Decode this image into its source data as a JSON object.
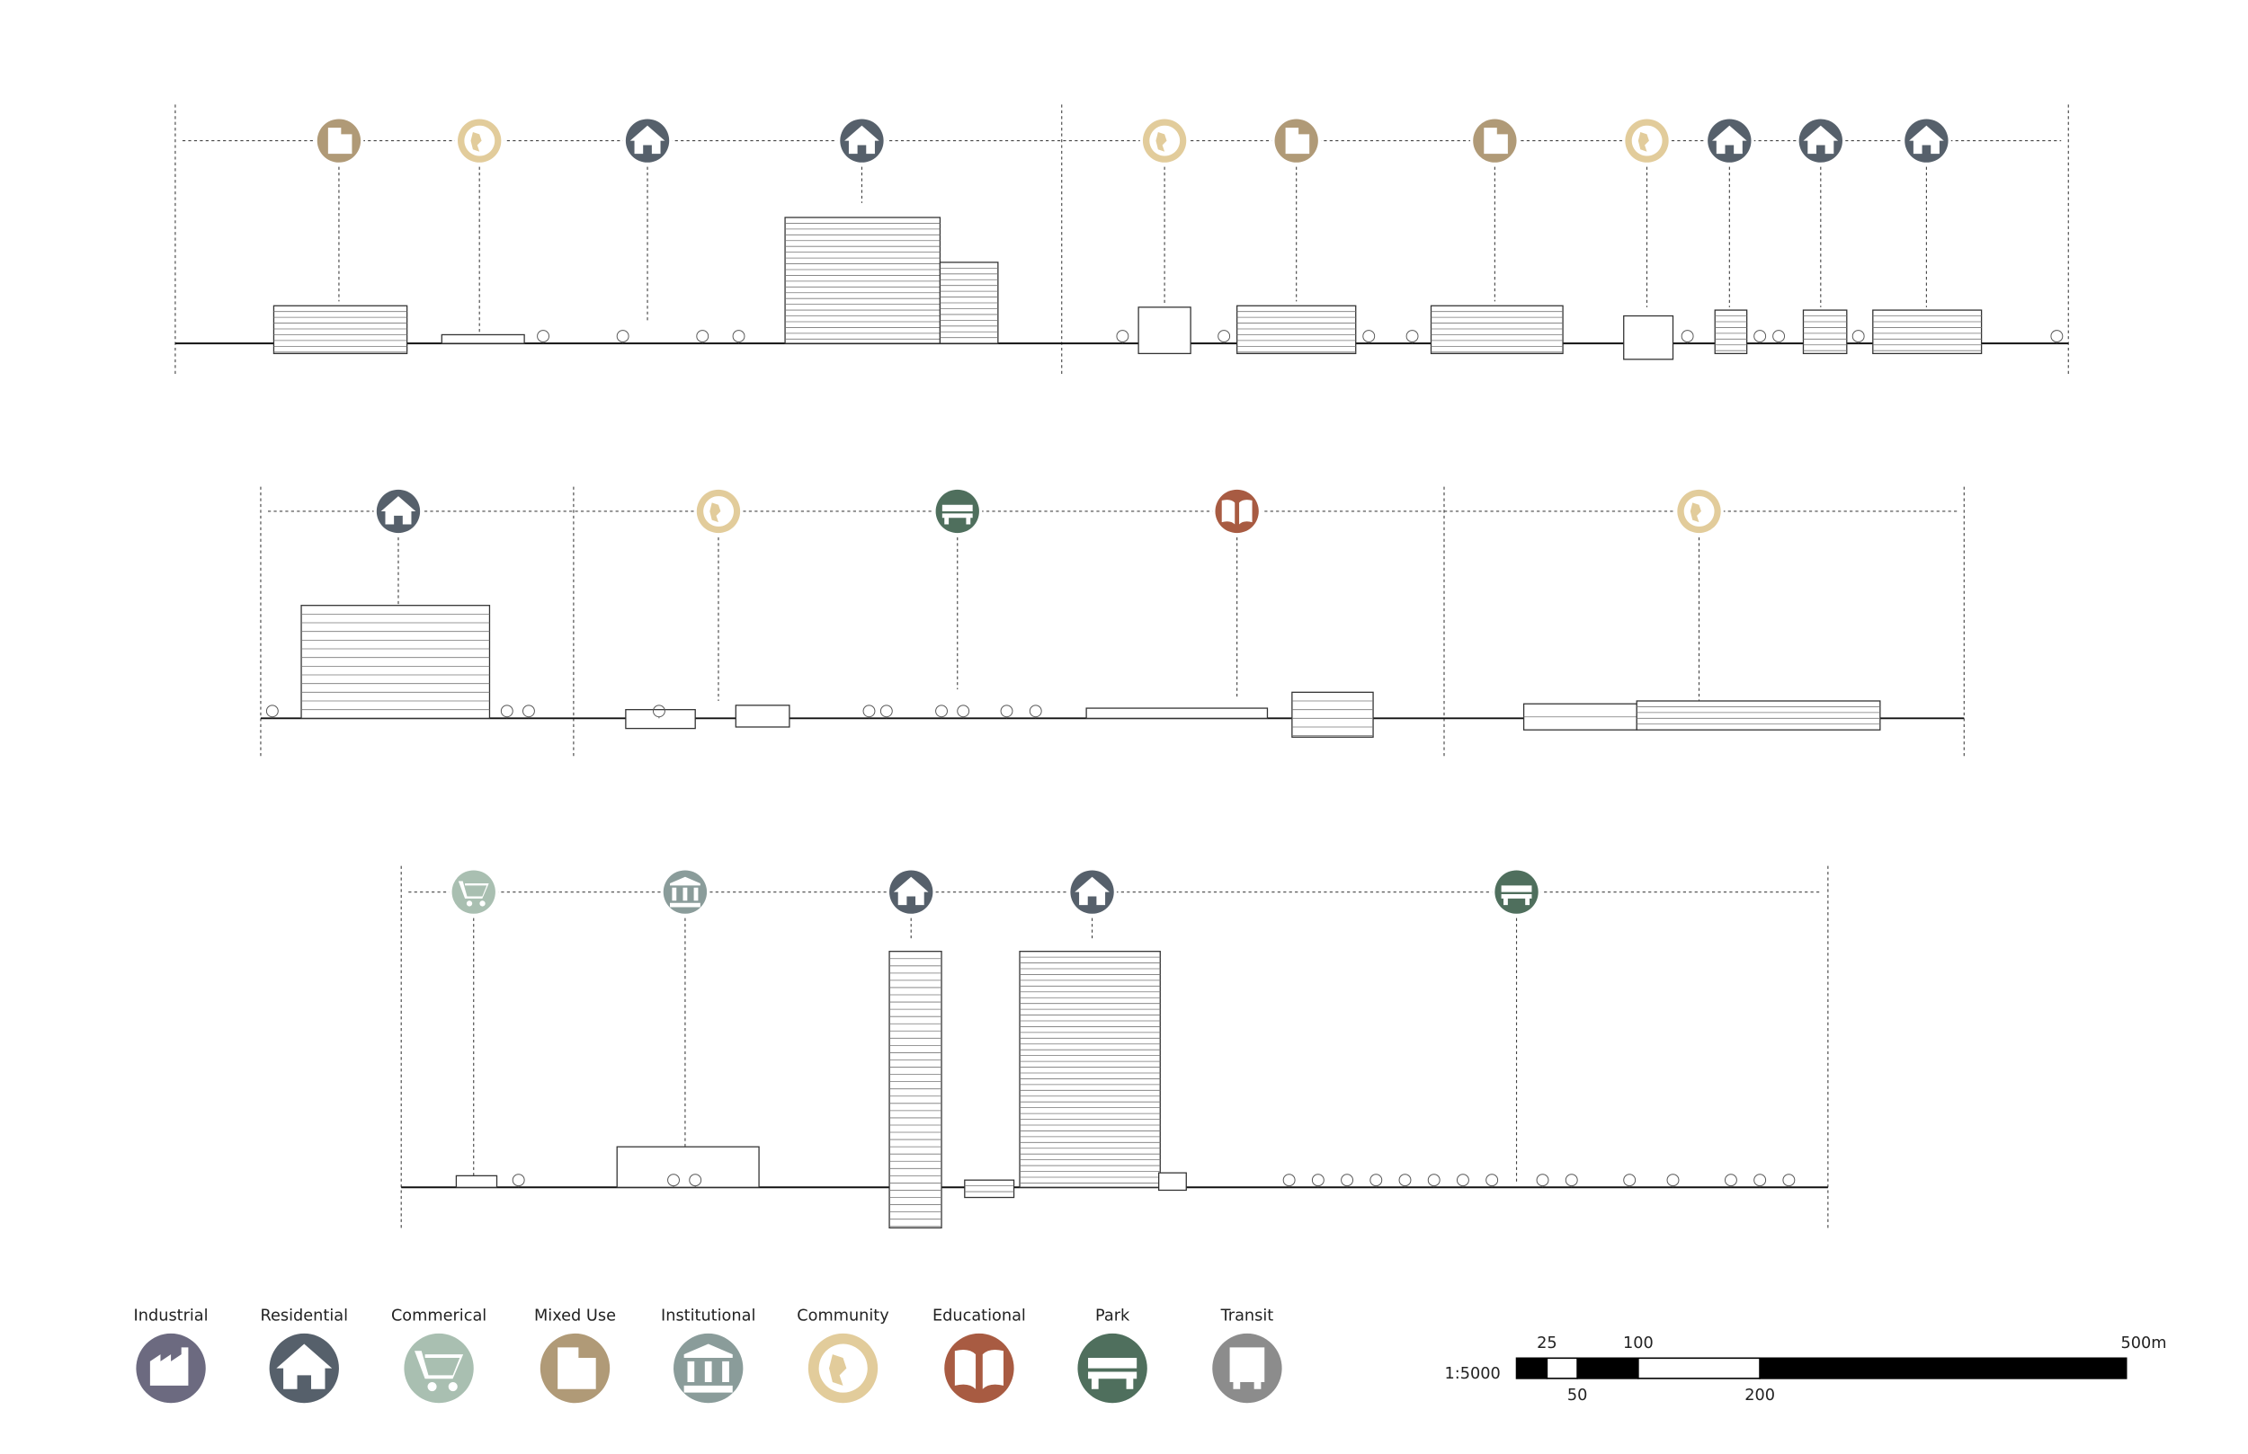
{
  "legend": [
    {
      "label": "Industrial",
      "color": "#6c6a80"
    },
    {
      "label": "Residential",
      "color": "#56606b"
    },
    {
      "label": "Commerical",
      "color": "#a9bfb1"
    },
    {
      "label": "Mixed Use",
      "color": "#b09a77"
    },
    {
      "label": "Institutional",
      "color": "#8a9c9a"
    },
    {
      "label": "Community",
      "color": "#e2cc9b"
    },
    {
      "label": "Educational",
      "color": "#a85b42"
    },
    {
      "label": "Park",
      "color": "#4f6f5d"
    },
    {
      "label": "Transit",
      "color": "#8c8c8c"
    }
  ],
  "scale_bar": {
    "ratio": "1:5000",
    "labels": [
      "25",
      "50",
      "100",
      "200",
      "500m"
    ]
  }
}
